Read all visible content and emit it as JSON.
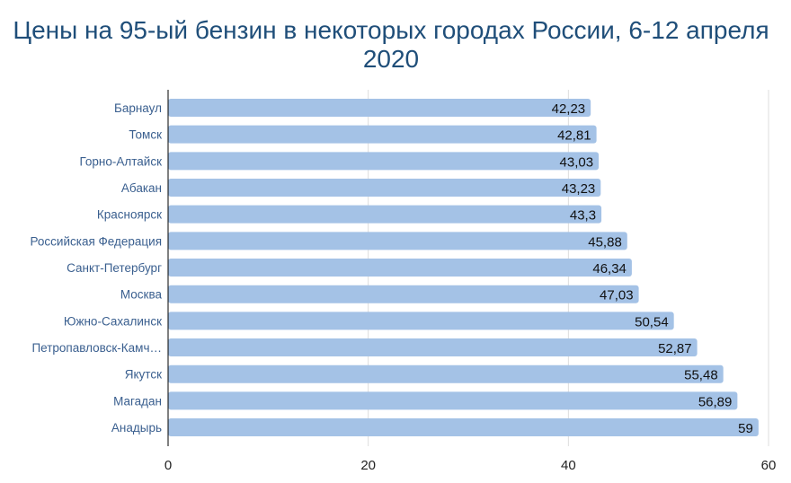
{
  "chart_data": {
    "type": "bar",
    "orientation": "horizontal",
    "title": "Цены на 95-ый бензин в некоторых городах России, 6-12 апреля 2020",
    "categories": [
      "Барнаул",
      "Томск",
      "Горно-Алтайск",
      "Абакан",
      "Красноярск",
      "Российская Федерация",
      "Санкт-Петербург",
      "Москва",
      "Южно-Сахалинск",
      "Петропавловск-Камч…",
      "Якутск",
      "Магадан",
      "Анадырь"
    ],
    "values": [
      42.23,
      42.81,
      43.03,
      43.23,
      43.3,
      45.88,
      46.34,
      47.03,
      50.54,
      52.87,
      55.48,
      56.89,
      59
    ],
    "data_labels": [
      "42,23",
      "42,81",
      "43,03",
      "43,23",
      "43,3",
      "45,88",
      "46,34",
      "47,03",
      "50,54",
      "52,87",
      "55,48",
      "56,89",
      "59"
    ],
    "x_ticks": [
      "0",
      "20",
      "40",
      "60"
    ],
    "xlim": [
      0,
      60
    ],
    "grid": true,
    "legend": "none",
    "colors": {
      "bar": "#a4c2e6",
      "category_label": "#3a5f8f",
      "title": "#1f4e79",
      "gridline": "#dddddd",
      "axis": "#000000"
    }
  }
}
